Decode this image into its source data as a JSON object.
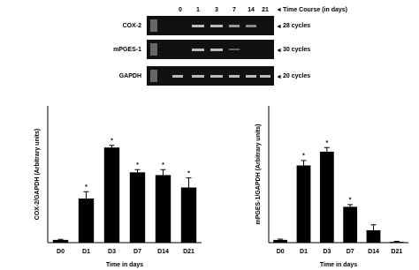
{
  "gel": {
    "lanes": [
      "0",
      "1",
      "3",
      "7",
      "14",
      "21"
    ],
    "time_label": "Time Course (in days)",
    "rows": [
      {
        "gene": "COX-2",
        "cycles": "28 cycles"
      },
      {
        "gene": "mPGES-1",
        "cycles": "30 cycles"
      },
      {
        "gene": "GAPDH",
        "cycles": "20 cycles"
      }
    ]
  },
  "chart_data": [
    {
      "type": "bar",
      "ylabel": "COX-2/GAPDH (Arbitrary units)",
      "xlabel": "Time in days",
      "categories": [
        "D0",
        "D1",
        "D3",
        "D7",
        "D14",
        "D21"
      ],
      "values": [
        0.1,
        1.6,
        3.45,
        2.55,
        2.45,
        2.0
      ],
      "errors": [
        0.02,
        0.25,
        0.08,
        0.1,
        0.2,
        0.35
      ],
      "markers": [
        null,
        "*",
        "*",
        "*",
        "*",
        "*"
      ],
      "color": "#000000",
      "ylim": [
        0,
        4
      ]
    },
    {
      "type": "bar",
      "ylabel": "mPGES-1/GAPDH (Arbitrary units)",
      "xlabel": "Time in days",
      "categories": [
        "D0",
        "D1",
        "D3",
        "D7",
        "D14",
        "D21"
      ],
      "values": [
        0.1,
        2.8,
        3.3,
        1.3,
        0.45,
        0.03
      ],
      "errors": [
        0.03,
        0.18,
        0.15,
        0.08,
        0.2,
        0.02
      ],
      "markers": [
        null,
        "*",
        "*",
        "*",
        null,
        null
      ],
      "color": "#000000",
      "ylim": [
        0,
        4
      ]
    }
  ]
}
